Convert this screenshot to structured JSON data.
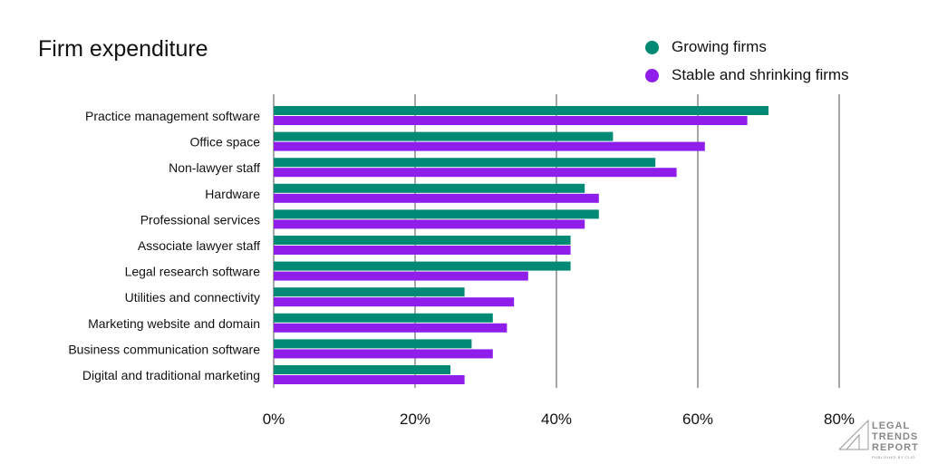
{
  "chart_data": {
    "type": "bar",
    "orientation": "horizontal",
    "title": "Firm expenditure",
    "categories": [
      "Practice management software",
      "Office space",
      "Non-lawyer staff",
      "Hardware",
      "Professional services",
      "Associate lawyer staff",
      "Legal research software",
      "Utilities and connectivity",
      "Marketing website and domain",
      "Business communication software",
      "Digital and traditional marketing"
    ],
    "series": [
      {
        "name": "Growing firms",
        "color": "#008a76",
        "values": [
          70,
          48,
          54,
          44,
          46,
          42,
          42,
          27,
          31,
          28,
          25
        ]
      },
      {
        "name": "Stable and shrinking firms",
        "color": "#8f1eea",
        "values": [
          67,
          61,
          57,
          46,
          44,
          42,
          36,
          34,
          33,
          31,
          27
        ]
      }
    ],
    "xlim": [
      0,
      80
    ],
    "xticks": [
      0,
      20,
      40,
      60,
      80
    ],
    "xtick_labels": [
      "0%",
      "20%",
      "40%",
      "60%",
      "80%"
    ],
    "grid": "vertical",
    "legend": "top-right",
    "xlabel": "",
    "ylabel": ""
  },
  "logo": {
    "lines": [
      "LEGAL",
      "TRENDS",
      "REPORT"
    ],
    "sub": "PUBLISHED BY CLIO"
  }
}
